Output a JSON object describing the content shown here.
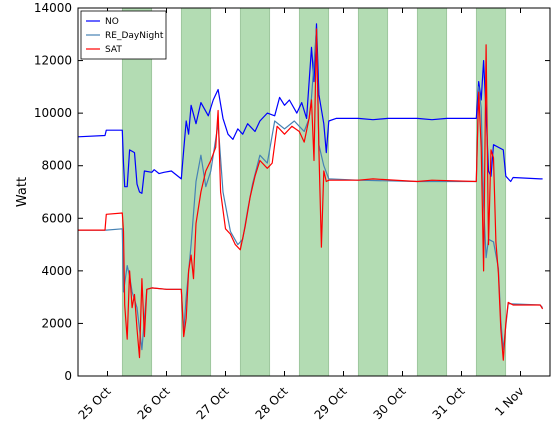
{
  "chart_data": {
    "type": "line",
    "title": "",
    "xlabel": "",
    "ylabel": "Watt",
    "ylim": [
      0,
      14000
    ],
    "xlim": [
      "2013-10-24 12:00",
      "2013-11-01 12:00"
    ],
    "y_ticks": [
      "0",
      "2000",
      "4000",
      "6000",
      "8000",
      "10000",
      "12000",
      "14000"
    ],
    "x_ticks": [
      {
        "x": "2013-10-25 00:00",
        "label": "25 Oct"
      },
      {
        "x": "2013-10-26 00:00",
        "label": "26 Oct"
      },
      {
        "x": "2013-10-27 00:00",
        "label": "27 Oct"
      },
      {
        "x": "2013-10-28 00:00",
        "label": "28 Oct"
      },
      {
        "x": "2013-10-29 00:00",
        "label": "29 Oct"
      },
      {
        "x": "2013-10-30 00:00",
        "label": "30 Oct"
      },
      {
        "x": "2013-10-31 00:00",
        "label": "31 Oct"
      },
      {
        "x": "2013-11-01 00:00",
        "label": "1 Nov"
      }
    ],
    "grid": false,
    "legend_position": "top-left",
    "shaded_bands": {
      "color": "#b3dcb3",
      "ranges": [
        [
          "2013-10-25 06:00",
          "2013-10-25 18:00"
        ],
        [
          "2013-10-26 06:00",
          "2013-10-26 18:00"
        ],
        [
          "2013-10-27 06:00",
          "2013-10-27 18:00"
        ],
        [
          "2013-10-28 06:00",
          "2013-10-28 18:00"
        ],
        [
          "2013-10-29 06:00",
          "2013-10-29 18:00"
        ],
        [
          "2013-10-30 06:00",
          "2013-10-30 18:00"
        ],
        [
          "2013-10-31 06:00",
          "2013-10-31 18:00"
        ]
      ]
    },
    "series": [
      {
        "name": "NO",
        "color": "#0000ff",
        "points": [
          [
            "2013-10-24 12:00",
            9100
          ],
          [
            "2013-10-24 23:00",
            9150
          ],
          [
            "2013-10-24 23:30",
            9350
          ],
          [
            "2013-10-25 06:00",
            9350
          ],
          [
            "2013-10-25 06:30",
            8100
          ],
          [
            "2013-10-25 07:00",
            7200
          ],
          [
            "2013-10-25 08:00",
            7200
          ],
          [
            "2013-10-25 09:00",
            8600
          ],
          [
            "2013-10-25 11:00",
            8500
          ],
          [
            "2013-10-25 12:00",
            7300
          ],
          [
            "2013-10-25 13:00",
            7000
          ],
          [
            "2013-10-25 14:00",
            6950
          ],
          [
            "2013-10-25 15:00",
            7800
          ],
          [
            "2013-10-25 18:00",
            7750
          ],
          [
            "2013-10-25 19:00",
            7850
          ],
          [
            "2013-10-25 21:00",
            7700
          ],
          [
            "2013-10-25 23:00",
            7750
          ],
          [
            "2013-10-26 02:00",
            7800
          ],
          [
            "2013-10-26 06:00",
            7500
          ],
          [
            "2013-10-26 07:00",
            8600
          ],
          [
            "2013-10-26 08:00",
            9700
          ],
          [
            "2013-10-26 09:00",
            9200
          ],
          [
            "2013-10-26 10:00",
            10300
          ],
          [
            "2013-10-26 12:00",
            9600
          ],
          [
            "2013-10-26 14:00",
            10400
          ],
          [
            "2013-10-26 17:00",
            9900
          ],
          [
            "2013-10-26 19:00",
            10500
          ],
          [
            "2013-10-26 21:00",
            10900
          ],
          [
            "2013-10-26 23:00",
            9800
          ],
          [
            "2013-10-27 01:00",
            9200
          ],
          [
            "2013-10-27 03:00",
            9000
          ],
          [
            "2013-10-27 05:00",
            9400
          ],
          [
            "2013-10-27 07:00",
            9200
          ],
          [
            "2013-10-27 09:00",
            9600
          ],
          [
            "2013-10-27 12:00",
            9300
          ],
          [
            "2013-10-27 14:00",
            9700
          ],
          [
            "2013-10-27 17:00",
            10000
          ],
          [
            "2013-10-27 20:00",
            9900
          ],
          [
            "2013-10-27 22:00",
            10600
          ],
          [
            "2013-10-28 00:00",
            10300
          ],
          [
            "2013-10-28 02:00",
            10500
          ],
          [
            "2013-10-28 05:00",
            10000
          ],
          [
            "2013-10-28 07:00",
            10400
          ],
          [
            "2013-10-28 09:00",
            9800
          ],
          [
            "2013-10-28 11:00",
            12500
          ],
          [
            "2013-10-28 12:00",
            11200
          ],
          [
            "2013-10-28 13:00",
            13400
          ],
          [
            "2013-10-28 14:00",
            10700
          ],
          [
            "2013-10-28 16:00",
            9600
          ],
          [
            "2013-10-28 17:00",
            8500
          ],
          [
            "2013-10-28 18:00",
            9700
          ],
          [
            "2013-10-28 21:00",
            9800
          ],
          [
            "2013-10-29 06:00",
            9800
          ],
          [
            "2013-10-29 12:00",
            9750
          ],
          [
            "2013-10-29 18:00",
            9800
          ],
          [
            "2013-10-30 06:00",
            9800
          ],
          [
            "2013-10-30 12:00",
            9750
          ],
          [
            "2013-10-30 18:00",
            9800
          ],
          [
            "2013-10-31 06:00",
            9800
          ],
          [
            "2013-10-31 07:00",
            11200
          ],
          [
            "2013-10-31 08:00",
            10500
          ],
          [
            "2013-10-31 09:00",
            12000
          ],
          [
            "2013-10-31 10:00",
            10000
          ],
          [
            "2013-10-31 11:00",
            7800
          ],
          [
            "2013-10-31 12:00",
            7600
          ],
          [
            "2013-10-31 13:00",
            8800
          ],
          [
            "2013-10-31 17:00",
            8600
          ],
          [
            "2013-10-31 18:00",
            7600
          ],
          [
            "2013-10-31 20:00",
            7400
          ],
          [
            "2013-10-31 21:00",
            7550
          ],
          [
            "2013-11-01 08:00",
            7500
          ],
          [
            "2013-11-01 09:00",
            7500
          ]
        ]
      },
      {
        "name": "RE_DayNight",
        "color": "#4682b4",
        "points": [
          [
            "2013-10-24 12:00",
            5550
          ],
          [
            "2013-10-24 23:30",
            5550
          ],
          [
            "2013-10-25 06:00",
            5600
          ],
          [
            "2013-10-25 06:30",
            3200
          ],
          [
            "2013-10-25 08:00",
            4200
          ],
          [
            "2013-10-25 09:00",
            3800
          ],
          [
            "2013-10-25 10:00",
            3200
          ],
          [
            "2013-10-25 12:00",
            2600
          ],
          [
            "2013-10-25 14:00",
            1000
          ],
          [
            "2013-10-25 16:00",
            3300
          ],
          [
            "2013-10-25 18:00",
            3350
          ],
          [
            "2013-10-26 00:00",
            3300
          ],
          [
            "2013-10-26 06:00",
            3300
          ],
          [
            "2013-10-26 07:00",
            1700
          ],
          [
            "2013-10-26 08:00",
            3000
          ],
          [
            "2013-10-26 10:00",
            5000
          ],
          [
            "2013-10-26 12:00",
            7400
          ],
          [
            "2013-10-26 14:00",
            8400
          ],
          [
            "2013-10-26 16:00",
            7200
          ],
          [
            "2013-10-26 18:00",
            7800
          ],
          [
            "2013-10-26 21:00",
            9600
          ],
          [
            "2013-10-26 23:00",
            7000
          ],
          [
            "2013-10-27 02:00",
            5500
          ],
          [
            "2013-10-27 05:00",
            5000
          ],
          [
            "2013-10-27 07:00",
            5200
          ],
          [
            "2013-10-27 09:00",
            6300
          ],
          [
            "2013-10-27 11:00",
            7300
          ],
          [
            "2013-10-27 14:00",
            8400
          ],
          [
            "2013-10-27 17:00",
            8100
          ],
          [
            "2013-10-27 20:00",
            9700
          ],
          [
            "2013-10-28 00:00",
            9400
          ],
          [
            "2013-10-28 04:00",
            9700
          ],
          [
            "2013-10-28 08:00",
            9300
          ],
          [
            "2013-10-28 10:00",
            9800
          ],
          [
            "2013-10-28 11:00",
            10600
          ],
          [
            "2013-10-28 13:00",
            13200
          ],
          [
            "2013-10-28 14:00",
            8800
          ],
          [
            "2013-10-28 16:00",
            8000
          ],
          [
            "2013-10-28 18:00",
            7500
          ],
          [
            "2013-10-29 06:00",
            7450
          ],
          [
            "2013-10-30 06:00",
            7400
          ],
          [
            "2013-10-31 06:00",
            7400
          ],
          [
            "2013-10-31 07:00",
            11000
          ],
          [
            "2013-10-31 08:00",
            10200
          ],
          [
            "2013-10-31 09:00",
            6500
          ],
          [
            "2013-10-31 10:00",
            4500
          ],
          [
            "2013-10-31 11:00",
            5200
          ],
          [
            "2013-10-31 13:00",
            5100
          ],
          [
            "2013-10-31 15:00",
            4100
          ],
          [
            "2013-10-31 16:00",
            2100
          ],
          [
            "2013-10-31 17:00",
            1000
          ],
          [
            "2013-10-31 19:00",
            2750
          ],
          [
            "2013-11-01 08:00",
            2700
          ],
          [
            "2013-11-01 09:00",
            2600
          ]
        ]
      },
      {
        "name": "SAT",
        "color": "#ff0000",
        "points": [
          [
            "2013-10-24 12:00",
            5550
          ],
          [
            "2013-10-24 23:00",
            5550
          ],
          [
            "2013-10-24 23:30",
            6150
          ],
          [
            "2013-10-25 06:00",
            6200
          ],
          [
            "2013-10-25 06:30",
            5500
          ],
          [
            "2013-10-25 07:00",
            2700
          ],
          [
            "2013-10-25 08:00",
            1400
          ],
          [
            "2013-10-25 09:00",
            4000
          ],
          [
            "2013-10-25 10:00",
            2600
          ],
          [
            "2013-10-25 11:00",
            3100
          ],
          [
            "2013-10-25 12:00",
            1800
          ],
          [
            "2013-10-25 13:00",
            700
          ],
          [
            "2013-10-25 14:00",
            3700
          ],
          [
            "2013-10-25 15:00",
            1500
          ],
          [
            "2013-10-25 16:00",
            3300
          ],
          [
            "2013-10-25 18:00",
            3350
          ],
          [
            "2013-10-26 00:00",
            3300
          ],
          [
            "2013-10-26 06:00",
            3300
          ],
          [
            "2013-10-26 07:00",
            1500
          ],
          [
            "2013-10-26 08:00",
            2200
          ],
          [
            "2013-10-26 09:00",
            4000
          ],
          [
            "2013-10-26 10:00",
            4600
          ],
          [
            "2013-10-26 11:00",
            3700
          ],
          [
            "2013-10-26 12:00",
            5800
          ],
          [
            "2013-10-26 14:00",
            7000
          ],
          [
            "2013-10-26 16:00",
            7800
          ],
          [
            "2013-10-26 18:00",
            8200
          ],
          [
            "2013-10-26 20:00",
            8700
          ],
          [
            "2013-10-26 21:00",
            10100
          ],
          [
            "2013-10-26 22:00",
            7000
          ],
          [
            "2013-10-27 00:00",
            5600
          ],
          [
            "2013-10-27 02:00",
            5400
          ],
          [
            "2013-10-27 04:00",
            5000
          ],
          [
            "2013-10-27 06:00",
            4800
          ],
          [
            "2013-10-27 08:00",
            5700
          ],
          [
            "2013-10-27 10:00",
            6800
          ],
          [
            "2013-10-27 12:00",
            7600
          ],
          [
            "2013-10-27 14:00",
            8200
          ],
          [
            "2013-10-27 17:00",
            7900
          ],
          [
            "2013-10-27 19:00",
            8100
          ],
          [
            "2013-10-27 21:00",
            9500
          ],
          [
            "2013-10-28 00:00",
            9200
          ],
          [
            "2013-10-28 03:00",
            9500
          ],
          [
            "2013-10-28 06:00",
            9300
          ],
          [
            "2013-10-28 08:00",
            8900
          ],
          [
            "2013-10-28 10:00",
            9800
          ],
          [
            "2013-10-28 11:00",
            10500
          ],
          [
            "2013-10-28 12:00",
            8200
          ],
          [
            "2013-10-28 13:00",
            13200
          ],
          [
            "2013-10-28 14:00",
            8600
          ],
          [
            "2013-10-28 15:00",
            4900
          ],
          [
            "2013-10-28 16:00",
            7800
          ],
          [
            "2013-10-28 17:00",
            7400
          ],
          [
            "2013-10-28 18:00",
            7450
          ],
          [
            "2013-10-29 06:00",
            7450
          ],
          [
            "2013-10-29 12:00",
            7500
          ],
          [
            "2013-10-30 06:00",
            7400
          ],
          [
            "2013-10-30 12:00",
            7450
          ],
          [
            "2013-10-31 06:00",
            7400
          ],
          [
            "2013-10-31 07:00",
            10800
          ],
          [
            "2013-10-31 08:00",
            8700
          ],
          [
            "2013-10-31 09:00",
            4000
          ],
          [
            "2013-10-31 10:00",
            12600
          ],
          [
            "2013-10-31 11:00",
            5000
          ],
          [
            "2013-10-31 12:00",
            8600
          ],
          [
            "2013-10-31 13:00",
            8300
          ],
          [
            "2013-10-31 14:00",
            5100
          ],
          [
            "2013-10-31 15:00",
            3900
          ],
          [
            "2013-10-31 16:00",
            1800
          ],
          [
            "2013-10-31 17:00",
            600
          ],
          [
            "2013-10-31 18:00",
            2000
          ],
          [
            "2013-10-31 19:00",
            2800
          ],
          [
            "2013-10-31 21:00",
            2700
          ],
          [
            "2013-11-01 08:00",
            2700
          ],
          [
            "2013-11-01 09:00",
            2550
          ]
        ]
      }
    ]
  }
}
